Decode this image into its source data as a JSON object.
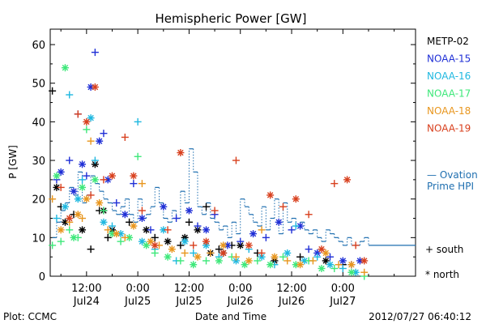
{
  "chart_data": {
    "type": "scatter",
    "title": "Hemispheric Power [GW]",
    "ylabel": "P [GW]",
    "xlabel": "Date and Time",
    "ylim": [
      0,
      64
    ],
    "yticks": [
      0,
      10,
      20,
      30,
      40,
      50,
      60
    ],
    "xlim_hours": [
      3.5,
      89
    ],
    "xticks": [
      {
        "hour": 12,
        "time": "12:00",
        "date": "Jul24"
      },
      {
        "hour": 24,
        "time": "0:00",
        "date": "Jul25"
      },
      {
        "hour": 36,
        "time": "12:00",
        "date": "Jul25"
      },
      {
        "hour": 48,
        "time": "0:00",
        "date": "Jul26"
      },
      {
        "hour": 60,
        "time": "12:00",
        "date": "Jul26"
      },
      {
        "hour": 72,
        "time": "0:00",
        "date": "Jul27"
      }
    ],
    "legend": {
      "placement": "right",
      "entries": [
        {
          "name": "METP-02",
          "color": "#000000"
        },
        {
          "name": "NOAA-15",
          "color": "#1f2fd6"
        },
        {
          "name": "NOAA-16",
          "color": "#1fb8e0"
        },
        {
          "name": "NOAA-17",
          "color": "#3ee87a"
        },
        {
          "name": "NOAA-18",
          "color": "#e8961e"
        },
        {
          "name": "NOAA-19",
          "color": "#d8401e"
        }
      ],
      "ovation_label_1": "— Ovation",
      "ovation_label_2": "Prime HPI",
      "ovation_color": "#1f6fb0",
      "south_label": "+ south",
      "north_label": "* north"
    },
    "ovation_hpi": {
      "x": [
        4,
        5,
        6,
        7,
        8,
        9,
        10,
        11,
        12,
        13,
        14,
        15,
        16,
        17,
        18,
        19,
        20,
        21,
        22,
        23,
        24,
        25,
        26,
        27,
        28,
        29,
        30,
        31,
        32,
        33,
        34,
        35,
        36,
        37,
        38,
        39,
        40,
        41,
        42,
        43,
        44,
        45,
        46,
        47,
        48,
        49,
        50,
        51,
        52,
        53,
        54,
        55,
        56,
        57,
        58,
        59,
        60,
        61,
        62,
        63,
        64,
        65,
        66,
        67,
        68,
        69,
        70,
        71,
        72,
        73,
        74,
        75,
        76,
        77,
        78,
        89
      ],
      "y": [
        10,
        14,
        17,
        19,
        23,
        21,
        27,
        19,
        21,
        26,
        24,
        22,
        20,
        19,
        17,
        16,
        18,
        20,
        16,
        14,
        20,
        15,
        16,
        18,
        23,
        19,
        15,
        14,
        17,
        15,
        22,
        19,
        33,
        27,
        18,
        16,
        19,
        15,
        14,
        12,
        13,
        10,
        14,
        11,
        20,
        18,
        16,
        14,
        13,
        18,
        12,
        15,
        20,
        11,
        19,
        14,
        15,
        13,
        14,
        12,
        11,
        12,
        10,
        9,
        12,
        11,
        10,
        9,
        8,
        10,
        8,
        8,
        9,
        10,
        8,
        8
      ]
    },
    "series": [
      {
        "name": "METP-02",
        "color": "#000000",
        "marker": "mixed",
        "x": [
          4,
          5,
          6,
          7,
          9,
          11,
          13,
          14,
          15,
          16,
          17,
          18,
          22,
          26,
          28,
          31,
          34,
          35,
          36,
          38,
          40,
          41,
          43,
          44,
          46,
          48,
          52,
          56,
          62,
          68,
          72
        ],
        "y": [
          48,
          23,
          18,
          14,
          16,
          12,
          7,
          29,
          17,
          17,
          10,
          12,
          14,
          12,
          10,
          9,
          8,
          10,
          14,
          12,
          18,
          6,
          7,
          6,
          8,
          8,
          6,
          4,
          5,
          4,
          3
        ]
      },
      {
        "name": "NOAA-15",
        "color": "#1f2fd6",
        "marker": "mixed",
        "x": [
          5,
          6,
          8,
          9,
          10,
          11,
          12,
          13,
          14,
          15,
          16,
          17,
          19,
          21,
          23,
          25,
          27,
          30,
          33,
          36,
          38,
          40,
          42,
          45,
          48,
          51,
          54,
          57,
          60,
          62,
          64,
          66,
          69,
          72,
          74,
          76
        ],
        "y": [
          25,
          27,
          30,
          22,
          42,
          29,
          26,
          49,
          58,
          35,
          37,
          25,
          19,
          16,
          24,
          15,
          12,
          18,
          15,
          17,
          13,
          12,
          16,
          8,
          9,
          11,
          10,
          14,
          12,
          13,
          7,
          6,
          5,
          4,
          3,
          4
        ]
      },
      {
        "name": "NOAA-16",
        "color": "#1fb8e0",
        "marker": "mixed",
        "x": [
          5,
          7,
          8,
          10,
          11,
          13,
          14,
          16,
          18,
          20,
          24,
          25,
          28,
          30,
          33,
          35,
          37,
          40,
          43,
          47,
          50,
          53,
          56,
          59,
          61,
          63,
          66,
          69,
          72,
          75
        ],
        "y": [
          15,
          18,
          47,
          20,
          25,
          41,
          30,
          14,
          13,
          11,
          40,
          9,
          7,
          12,
          4,
          9,
          6,
          8,
          5,
          4,
          7,
          5,
          3,
          6,
          13,
          4,
          5,
          3,
          2,
          1
        ]
      },
      {
        "name": "NOAA-17",
        "color": "#3ee87a",
        "marker": "mixed",
        "x": [
          4,
          5,
          6,
          7,
          8,
          9,
          10,
          11,
          12,
          14,
          16,
          18,
          20,
          22,
          24,
          26,
          28,
          31,
          34,
          37,
          40,
          43,
          46,
          49,
          52,
          55,
          58,
          61,
          64,
          67,
          70,
          74,
          77
        ],
        "y": [
          8,
          26,
          9,
          54,
          12,
          10,
          10,
          23,
          38,
          25,
          17,
          11,
          9,
          10,
          31,
          8,
          6,
          5,
          4,
          3,
          4,
          4,
          5,
          3,
          4,
          3,
          5,
          3,
          4,
          2,
          2,
          1,
          0
        ]
      },
      {
        "name": "NOAA-18",
        "color": "#e8961e",
        "marker": "mixed",
        "x": [
          4,
          6,
          8,
          10,
          11,
          12,
          13,
          15,
          17,
          19,
          21,
          23,
          25,
          27,
          29,
          32,
          35,
          38,
          41,
          44,
          47,
          50,
          53,
          56,
          59,
          62,
          65,
          68,
          71,
          74,
          77
        ],
        "y": [
          20,
          12,
          14,
          16,
          15,
          20,
          35,
          19,
          12,
          11,
          10,
          13,
          24,
          9,
          8,
          7,
          6,
          5,
          6,
          8,
          5,
          4,
          12,
          5,
          4,
          3,
          4,
          6,
          3,
          3,
          1
        ]
      },
      {
        "name": "NOAA-19",
        "color": "#d8401e",
        "marker": "mixed",
        "x": [
          6,
          8,
          10,
          12,
          13,
          14,
          16,
          18,
          21,
          23,
          25,
          28,
          31,
          34,
          37,
          40,
          42,
          44,
          47,
          50,
          53,
          55,
          58,
          61,
          64,
          67,
          70,
          73,
          75,
          77
        ],
        "y": [
          23,
          15,
          42,
          40,
          21,
          49,
          25,
          26,
          36,
          26,
          17,
          8,
          12,
          32,
          8,
          9,
          17,
          6,
          30,
          8,
          6,
          21,
          18,
          20,
          16,
          7,
          24,
          25,
          8,
          4
        ]
      }
    ]
  },
  "footer": {
    "plot_credit": "Plot: CCMC",
    "timestamp": "2012/07/27 06:40:12"
  }
}
